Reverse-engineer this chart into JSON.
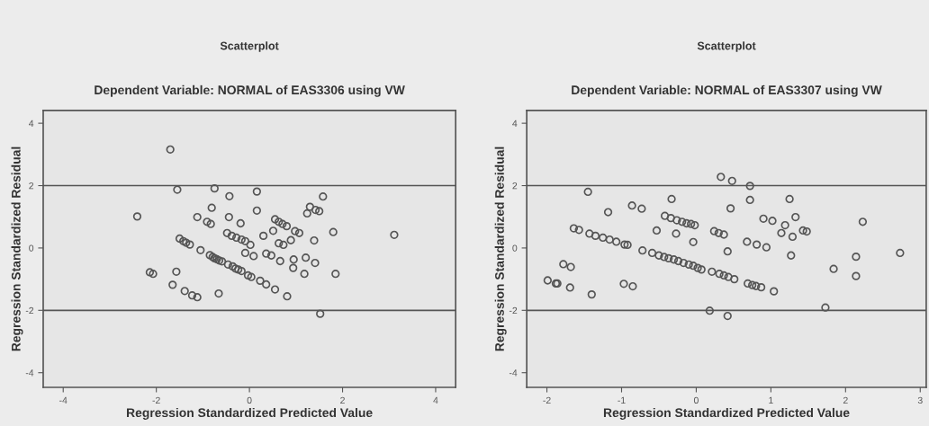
{
  "chart_data": [
    {
      "type": "scatter",
      "title": "Scatterplot",
      "subtitle": "Dependent Variable: NORMAL of EAS3306 using VW",
      "xlabel": "Regression Standardized Predicted Value",
      "ylabel": "Regression Standardized Residual",
      "color": "#555555",
      "marker": "circle",
      "grid": false,
      "xlim": [
        -4.43,
        4.43
      ],
      "ylim": [
        -4.47,
        4.41
      ],
      "xticks": [
        -4,
        -2,
        0,
        2,
        4
      ],
      "yticks": [
        -4,
        -2,
        0,
        2,
        4
      ],
      "ref_lines": [
        {
          "axis": "y",
          "value": 2,
          "color": "#555555"
        },
        {
          "axis": "y",
          "value": -2,
          "color": "#555555"
        }
      ],
      "x": [
        -1.7,
        -1.55,
        -0.75,
        -0.43,
        -2.41,
        -1.12,
        -0.81,
        -0.91,
        -0.83,
        -0.44,
        -0.48,
        -0.38,
        -1.5,
        -1.42,
        -1.36,
        -1.28,
        -1.05,
        -0.85,
        -0.79,
        -0.75,
        -0.7,
        -0.65,
        -0.59,
        -0.46,
        -0.36,
        -2.14,
        -2.07,
        -1.57,
        -1.65,
        -1.39,
        -1.23,
        -1.12,
        -0.66,
        0.16,
        0.16,
        -0.19,
        -0.28,
        -0.17,
        -0.09,
        0.02,
        -0.09,
        0.09,
        -0.3,
        -0.24,
        -0.17,
        -0.03,
        0.04,
        0.23,
        0.36,
        0.55,
        0.81,
        0.3,
        0.51,
        0.55,
        0.63,
        0.71,
        0.8,
        0.98,
        1.07,
        0.63,
        0.73,
        0.89,
        0.36,
        0.47,
        0.66,
        0.95,
        0.94,
        1.21,
        1.41,
        1.18,
        1.85,
        1.39,
        1.8,
        1.24,
        1.3,
        1.42,
        1.5,
        1.58,
        1.52,
        3.11
      ],
      "values": [
        3.16,
        1.87,
        1.91,
        1.66,
        1.01,
        0.99,
        1.29,
        0.84,
        0.77,
        0.99,
        0.48,
        0.39,
        0.3,
        0.22,
        0.17,
        0.11,
        -0.07,
        -0.23,
        -0.29,
        -0.33,
        -0.36,
        -0.4,
        -0.43,
        -0.53,
        -0.59,
        -0.78,
        -0.83,
        -0.76,
        -1.18,
        -1.38,
        -1.52,
        -1.58,
        -1.46,
        1.81,
        1.2,
        0.79,
        0.33,
        0.27,
        0.22,
        0.1,
        -0.16,
        -0.26,
        -0.66,
        -0.69,
        -0.74,
        -0.88,
        -0.93,
        -1.05,
        -1.17,
        -1.33,
        -1.55,
        0.39,
        0.55,
        0.92,
        0.84,
        0.77,
        0.7,
        0.54,
        0.48,
        0.15,
        0.1,
        0.25,
        -0.18,
        -0.24,
        -0.42,
        -0.37,
        -0.64,
        -0.31,
        -0.48,
        -0.83,
        -0.83,
        0.24,
        0.51,
        1.11,
        1.32,
        1.22,
        1.18,
        1.65,
        -2.11,
        0.42
      ]
    },
    {
      "type": "scatter",
      "title": "Scatterplot",
      "subtitle": "Dependent Variable: NORMAL of EAS3307 using VW",
      "xlabel": "Regression Standardized Predicted Value",
      "ylabel": "Regression Standardized Residual",
      "color": "#555555",
      "marker": "circle",
      "grid": false,
      "xlim": [
        -2.27,
        3.08
      ],
      "ylim": [
        -4.47,
        4.41
      ],
      "xticks": [
        -2,
        -1,
        0,
        1,
        2,
        3
      ],
      "yticks": [
        -4,
        -2,
        0,
        2,
        4
      ],
      "ref_lines": [
        {
          "axis": "y",
          "value": 2,
          "color": "#555555"
        },
        {
          "axis": "y",
          "value": -2,
          "color": "#555555"
        }
      ],
      "x": [
        -1.45,
        -1.18,
        -0.86,
        -0.73,
        -0.33,
        -1.64,
        -1.57,
        -1.43,
        -1.35,
        -1.25,
        -1.16,
        -1.07,
        -0.96,
        -0.92,
        -0.53,
        -0.27,
        -0.04,
        -0.42,
        -0.34,
        -0.26,
        -0.19,
        -0.13,
        -0.07,
        -0.02,
        -0.72,
        -0.59,
        -0.5,
        -0.43,
        -0.37,
        -0.3,
        -0.24,
        -0.17,
        -0.1,
        -0.04,
        0.02,
        0.07,
        -1.78,
        -1.68,
        -1.99,
        -1.88,
        -1.86,
        -1.69,
        -1.4,
        -0.97,
        -0.85,
        0.21,
        0.31,
        0.37,
        0.43,
        0.51,
        0.69,
        0.75,
        0.8,
        0.87,
        1.04,
        0.18,
        0.42,
        1.73,
        0.33,
        0.48,
        0.72,
        0.72,
        0.46,
        1.25,
        0.9,
        1.02,
        1.33,
        1.19,
        1.14,
        1.29,
        1.43,
        1.48,
        2.23,
        0.24,
        0.3,
        0.37,
        0.68,
        0.81,
        0.94,
        0.42,
        1.27,
        1.84,
        2.14,
        2.14,
        2.73
      ],
      "values": [
        1.8,
        1.15,
        1.36,
        1.26,
        1.57,
        0.63,
        0.58,
        0.46,
        0.39,
        0.33,
        0.27,
        0.2,
        0.11,
        0.1,
        0.56,
        0.46,
        0.19,
        1.03,
        0.96,
        0.89,
        0.84,
        0.79,
        0.77,
        0.73,
        -0.08,
        -0.16,
        -0.24,
        -0.29,
        -0.33,
        -0.37,
        -0.42,
        -0.48,
        -0.53,
        -0.57,
        -0.64,
        -0.69,
        -0.52,
        -0.61,
        -1.04,
        -1.14,
        -1.14,
        -1.27,
        -1.49,
        -1.15,
        -1.23,
        -0.76,
        -0.83,
        -0.88,
        -0.93,
        -1.0,
        -1.14,
        -1.19,
        -1.22,
        -1.26,
        -1.39,
        -2.01,
        -2.18,
        -1.91,
        2.28,
        2.15,
        1.99,
        1.54,
        1.27,
        1.57,
        0.94,
        0.87,
        0.99,
        0.73,
        0.48,
        0.36,
        0.56,
        0.53,
        0.84,
        0.54,
        0.48,
        0.43,
        0.2,
        0.11,
        0.02,
        -0.11,
        -0.24,
        -0.67,
        -0.28,
        -0.9,
        -0.16
      ]
    }
  ]
}
